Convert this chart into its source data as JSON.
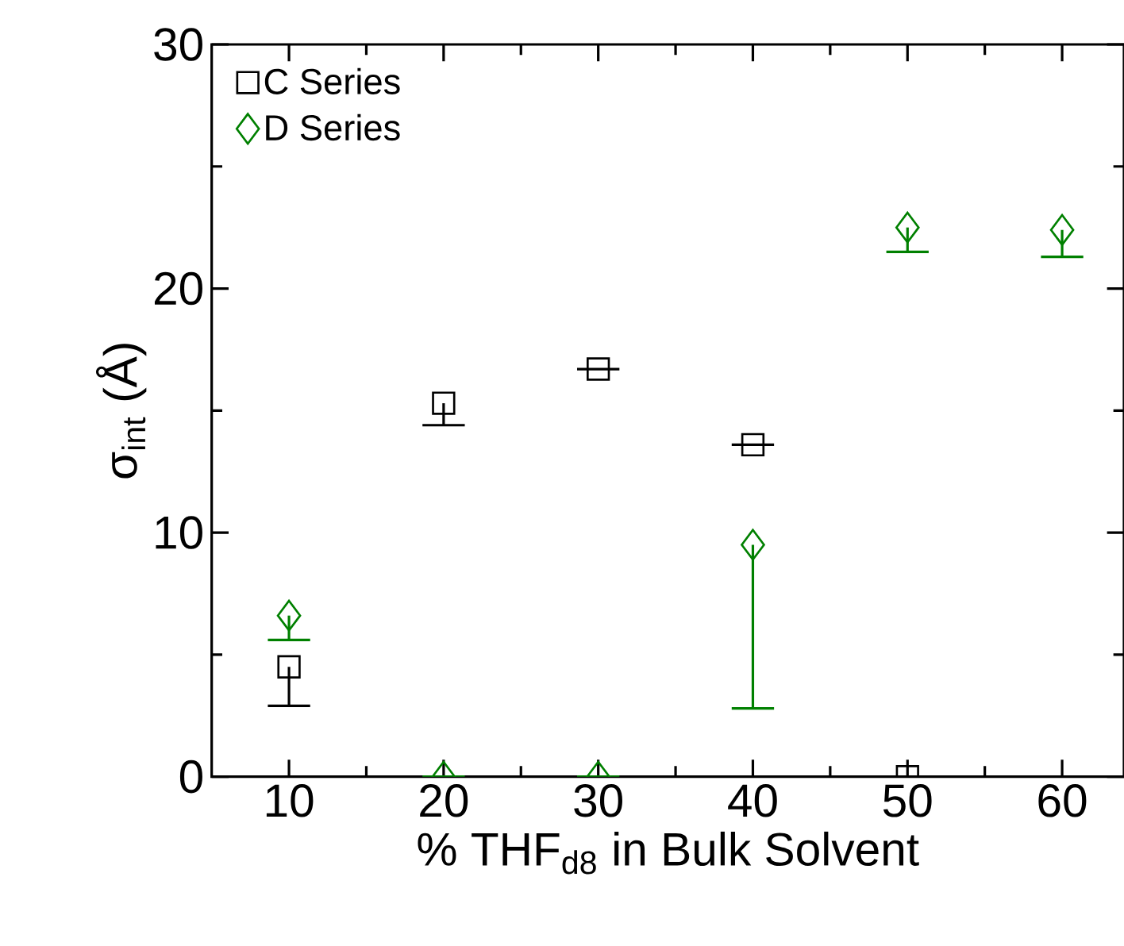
{
  "chart_data": {
    "type": "scatter",
    "xlabel": "% THF$_{d8}$ in Bulk Solvent",
    "ylabel": "σ$_{int}$ (Å)",
    "x": [
      10,
      20,
      30,
      40,
      50,
      60
    ],
    "series": [
      {
        "name": "C Series",
        "color": "#000000",
        "marker": "square",
        "values": [
          4.5,
          15.3,
          16.7,
          13.6,
          0,
          null
        ],
        "errors": [
          [
            2.9,
            4.5
          ],
          [
            14.4,
            15.3
          ],
          null,
          null,
          null,
          null
        ]
      },
      {
        "name": "D Series",
        "color": "#008000",
        "marker": "diamond",
        "values": [
          6.6,
          0,
          0,
          9.5,
          22.5,
          22.4
        ],
        "errors": [
          [
            5.6,
            6.6
          ],
          null,
          null,
          [
            2.8,
            9.5
          ],
          [
            21.5,
            22.5
          ],
          [
            21.3,
            22.4
          ]
        ]
      }
    ],
    "xlim": [
      5,
      64
    ],
    "ylim": [
      0,
      30
    ],
    "xticks": [
      10,
      20,
      30,
      40,
      50,
      60
    ],
    "yticks": [
      0,
      10,
      20,
      30
    ],
    "legend": "top left",
    "grid": false
  }
}
